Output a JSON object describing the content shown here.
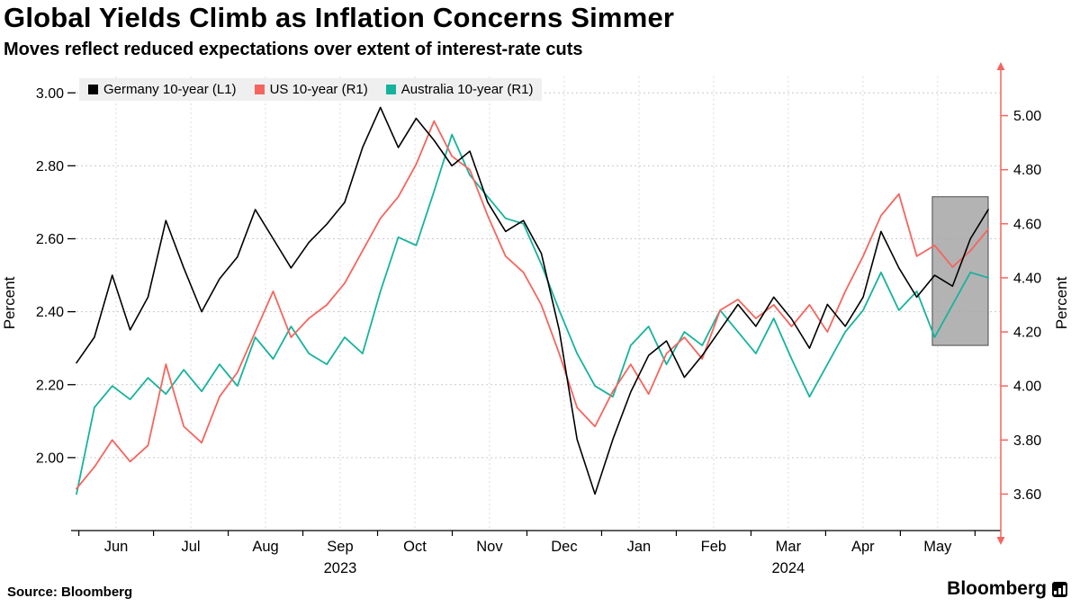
{
  "title": "Global Yields Climb as Inflation Concerns Simmer",
  "subtitle": "Moves reflect reduced expectations over extent of interest-rate cuts",
  "source_label": "Source: Bloomberg",
  "logo_text": "Bloomberg",
  "colors": {
    "germany": "#000000",
    "us": "#f5655e",
    "australia": "#16b39c",
    "legend_bg": "#efefef",
    "grid": "#c9c9c9",
    "highlight_fill": "#a6a6a6",
    "highlight_border": "#4a4a4a"
  },
  "chart_data": {
    "type": "line",
    "title": "Global Yields Climb as Inflation Concerns Simmer",
    "subtitle": "Moves reflect reduced expectations over extent of interest-rate cuts",
    "x_tick_labels": [
      "Jun",
      "Jul",
      "Aug",
      "Sep",
      "Oct",
      "Nov",
      "Dec",
      "Jan",
      "Feb",
      "Mar",
      "Apr",
      "May"
    ],
    "year_labels": [
      {
        "label": "2023",
        "month": "Sep"
      },
      {
        "label": "2024",
        "month": "Mar"
      }
    ],
    "left_axis": {
      "label": "Percent",
      "min": 1.8,
      "max": 3.045,
      "ticks": [
        3.0,
        2.8,
        2.6,
        2.4,
        2.2,
        2.0
      ]
    },
    "right_axis": {
      "label": "Percent",
      "min": 3.465,
      "max": 5.145,
      "ticks": [
        5.0,
        4.8,
        4.6,
        4.4,
        4.2,
        4.0,
        3.8,
        3.6
      ],
      "color": "#f5655e"
    },
    "grid": "dotted",
    "legend_position": "top",
    "x_unit": "weekly, late May 2023 to mid May 2024",
    "series": [
      {
        "name": "Germany 10-year (L1)",
        "axis": "left",
        "color": "#000000",
        "values": [
          2.26,
          2.33,
          2.5,
          2.35,
          2.44,
          2.65,
          2.52,
          2.4,
          2.49,
          2.55,
          2.68,
          2.6,
          2.52,
          2.59,
          2.64,
          2.7,
          2.85,
          2.96,
          2.85,
          2.93,
          2.87,
          2.8,
          2.84,
          2.7,
          2.62,
          2.65,
          2.56,
          2.35,
          2.05,
          1.9,
          2.05,
          2.18,
          2.28,
          2.32,
          2.22,
          2.28,
          2.35,
          2.42,
          2.36,
          2.44,
          2.38,
          2.3,
          2.42,
          2.36,
          2.44,
          2.62,
          2.52,
          2.44,
          2.5,
          2.47,
          2.6,
          2.68
        ]
      },
      {
        "name": "US 10-year (R1)",
        "axis": "right",
        "color": "#f5655e",
        "values": [
          3.62,
          3.7,
          3.8,
          3.72,
          3.78,
          4.08,
          3.85,
          3.79,
          3.96,
          4.05,
          4.2,
          4.35,
          4.18,
          4.25,
          4.3,
          4.38,
          4.5,
          4.62,
          4.7,
          4.82,
          4.98,
          4.85,
          4.8,
          4.63,
          4.48,
          4.42,
          4.3,
          4.12,
          3.92,
          3.85,
          3.98,
          4.08,
          3.97,
          4.12,
          4.18,
          4.1,
          4.28,
          4.32,
          4.25,
          4.3,
          4.22,
          4.3,
          4.2,
          4.35,
          4.48,
          4.63,
          4.71,
          4.48,
          4.52,
          4.44,
          4.5,
          4.58
        ]
      },
      {
        "name": "Australia 10-year (R1)",
        "axis": "right",
        "color": "#16b39c",
        "values": [
          3.6,
          3.92,
          4.0,
          3.95,
          4.03,
          3.97,
          4.06,
          3.98,
          4.08,
          4.0,
          4.18,
          4.1,
          4.22,
          4.12,
          4.08,
          4.18,
          4.12,
          4.35,
          4.55,
          4.52,
          4.72,
          4.93,
          4.78,
          4.7,
          4.62,
          4.6,
          4.45,
          4.28,
          4.12,
          4.0,
          3.96,
          4.15,
          4.22,
          4.08,
          4.2,
          4.15,
          4.28,
          4.2,
          4.12,
          4.25,
          4.1,
          3.96,
          4.08,
          4.2,
          4.28,
          4.42,
          4.28,
          4.35,
          4.18,
          4.3,
          4.42,
          4.4
        ]
      }
    ],
    "highlight": {
      "description": "gray box over recent May 2024 moves",
      "week_start": 47.5,
      "week_end": 50.6,
      "right_axis_top": 4.7,
      "right_axis_bottom": 4.15
    }
  }
}
